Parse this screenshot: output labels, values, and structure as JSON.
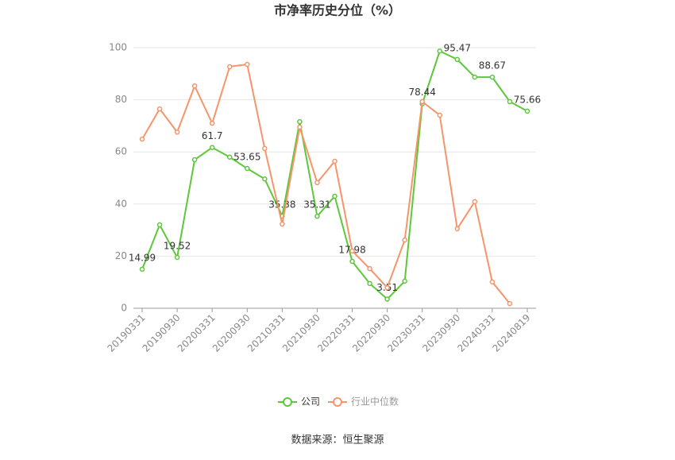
{
  "chart_data": {
    "type": "line",
    "title": "市净率历史分位（%）",
    "categories": [
      "20190331",
      null,
      "20190930",
      null,
      "20200331",
      null,
      "20200930",
      null,
      "20210331",
      null,
      "20210930",
      null,
      "20220331",
      null,
      "20220930",
      null,
      "20230331",
      null,
      "20230930",
      null,
      "20240331",
      null,
      "20240819"
    ],
    "series": [
      {
        "name": "公司",
        "color": "#5cc83a",
        "values": [
          14.99,
          32,
          19.52,
          57,
          61.7,
          58,
          53.65,
          49.6,
          35.38,
          71.6,
          35.31,
          43,
          17.98,
          9.5,
          3.51,
          10.4,
          78.44,
          98.7,
          95.47,
          88.7,
          88.67,
          79.3,
          75.66
        ]
      },
      {
        "name": "行业中位数",
        "color": "#f5956a",
        "values": [
          64.9,
          76.5,
          67.6,
          85.3,
          71,
          92.7,
          93.6,
          61.3,
          32.3,
          69.5,
          48.2,
          56.4,
          22,
          15.2,
          7.9,
          26.2,
          79.3,
          74.1,
          30.5,
          40.9,
          10.1,
          1.8,
          null
        ]
      }
    ],
    "ylim": [
      0,
      100
    ],
    "yticks": [
      0,
      20,
      40,
      60,
      80,
      100
    ],
    "grid": true
  },
  "source": "数据来源：恒生聚源"
}
